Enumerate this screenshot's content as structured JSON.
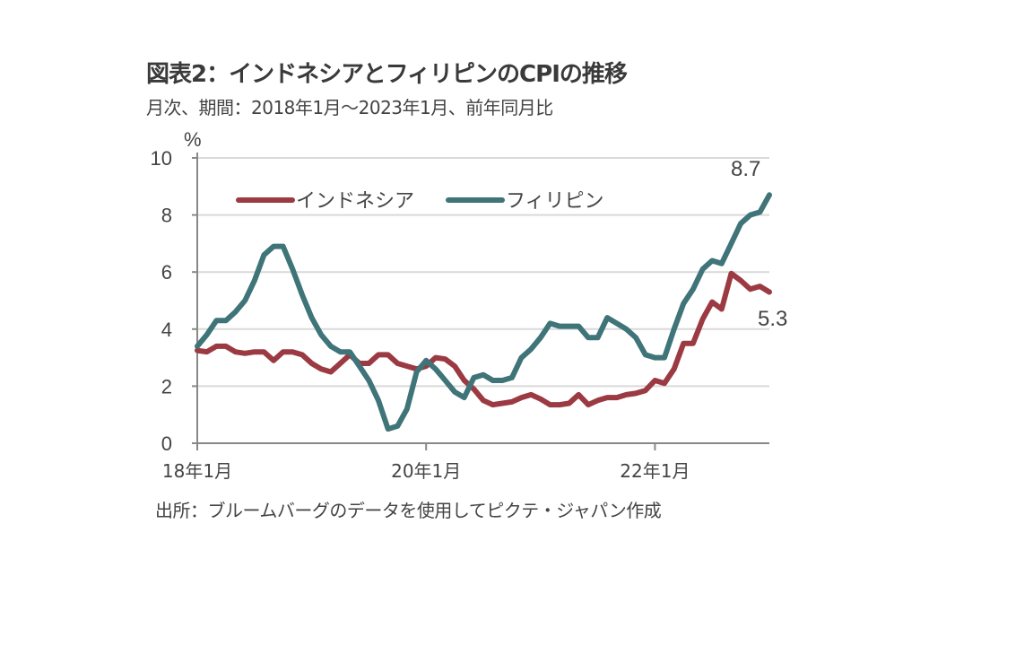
{
  "title": "図表2：インドネシアとフィリピンのCPIの推移",
  "subtitle": "月次、期間：2018年1月～2023年1月、前年同月比",
  "source": "出所：ブルームバーグのデータを使用してピクテ・ジャパン作成",
  "chart_data": {
    "type": "line",
    "ylabel": "%",
    "ylim": [
      0,
      10
    ],
    "yticks": [
      "0",
      "2",
      "4",
      "6",
      "8",
      "10"
    ],
    "xticks": [
      "18年1月",
      "20年1月",
      "22年1月"
    ],
    "x_start": "2018-01",
    "x_end": "2023-01",
    "grid": true,
    "legend": "top-left",
    "series": [
      {
        "name": "インドネシア",
        "color": "#9b3a42",
        "end_label": "5.3",
        "values": [
          3.25,
          3.2,
          3.4,
          3.4,
          3.2,
          3.15,
          3.2,
          3.2,
          2.9,
          3.2,
          3.2,
          3.1,
          2.8,
          2.6,
          2.5,
          2.8,
          3.1,
          2.8,
          2.8,
          3.1,
          3.1,
          2.8,
          2.7,
          2.6,
          2.7,
          3.0,
          2.95,
          2.7,
          2.2,
          1.9,
          1.5,
          1.35,
          1.4,
          1.45,
          1.6,
          1.7,
          1.55,
          1.35,
          1.35,
          1.4,
          1.7,
          1.35,
          1.5,
          1.6,
          1.6,
          1.7,
          1.75,
          1.85,
          2.2,
          2.1,
          2.6,
          3.5,
          3.5,
          4.35,
          4.95,
          4.7,
          5.95,
          5.7,
          5.4,
          5.5,
          5.3
        ]
      },
      {
        "name": "フィリピン",
        "color": "#3f7478",
        "end_label": "8.7",
        "values": [
          3.4,
          3.8,
          4.3,
          4.3,
          4.6,
          5.0,
          5.7,
          6.6,
          6.9,
          6.9,
          6.1,
          5.2,
          4.4,
          3.8,
          3.4,
          3.2,
          3.2,
          2.7,
          2.2,
          1.5,
          0.5,
          0.6,
          1.2,
          2.5,
          2.9,
          2.6,
          2.2,
          1.8,
          1.6,
          2.3,
          2.4,
          2.2,
          2.2,
          2.3,
          3.0,
          3.3,
          3.7,
          4.2,
          4.1,
          4.1,
          4.1,
          3.7,
          3.7,
          4.4,
          4.2,
          4.0,
          3.7,
          3.1,
          3.0,
          3.0,
          4.0,
          4.9,
          5.4,
          6.1,
          6.4,
          6.3,
          7.0,
          7.7,
          8.0,
          8.1,
          8.7
        ]
      }
    ]
  }
}
